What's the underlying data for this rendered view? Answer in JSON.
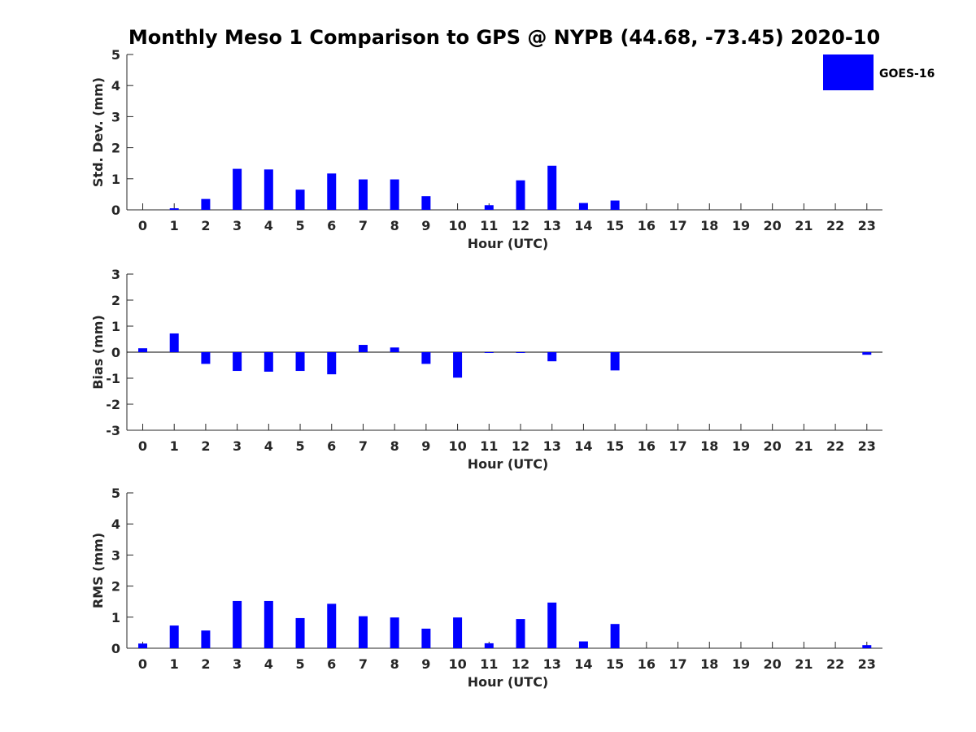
{
  "title": "Monthly Meso 1 Comparison to GPS @ NYPB (44.68, -73.45) 2020-10",
  "legend": {
    "label": "GOES-16",
    "color": "#0000ff"
  },
  "colors": {
    "bar": "#0000ff",
    "axis": "#262626",
    "background": "#ffffff"
  },
  "chart_data": [
    {
      "type": "bar",
      "ylabel": "Std. Dev. (mm)",
      "xlabel": "Hour (UTC)",
      "ylim": [
        0,
        5
      ],
      "yticks": [
        0,
        1,
        2,
        3,
        4,
        5
      ],
      "categories": [
        "0",
        "1",
        "2",
        "3",
        "4",
        "5",
        "6",
        "7",
        "8",
        "9",
        "10",
        "11",
        "12",
        "13",
        "14",
        "15",
        "16",
        "17",
        "18",
        "19",
        "20",
        "21",
        "22",
        "23"
      ],
      "series": [
        {
          "name": "GOES-16",
          "values": [
            0,
            0.05,
            0.35,
            1.32,
            1.3,
            0.65,
            1.17,
            0.98,
            0.98,
            0.44,
            0,
            0.15,
            0.95,
            1.42,
            0.22,
            0.3,
            0,
            0,
            0,
            0,
            0,
            0,
            0,
            0
          ]
        }
      ]
    },
    {
      "type": "bar",
      "ylabel": "Bias (mm)",
      "xlabel": "Hour (UTC)",
      "ylim": [
        -3,
        3
      ],
      "yticks": [
        -3,
        -2,
        -1,
        0,
        1,
        2,
        3
      ],
      "zero_line": true,
      "categories": [
        "0",
        "1",
        "2",
        "3",
        "4",
        "5",
        "6",
        "7",
        "8",
        "9",
        "10",
        "11",
        "12",
        "13",
        "14",
        "15",
        "16",
        "17",
        "18",
        "19",
        "20",
        "21",
        "22",
        "23"
      ],
      "series": [
        {
          "name": "GOES-16",
          "values": [
            0.15,
            0.72,
            -0.45,
            -0.72,
            -0.75,
            -0.72,
            -0.85,
            0.28,
            0.18,
            -0.45,
            -0.98,
            -0.02,
            -0.02,
            -0.35,
            0,
            -0.7,
            0,
            0,
            0,
            0,
            0,
            0,
            0,
            -0.1
          ]
        }
      ]
    },
    {
      "type": "bar",
      "ylabel": "RMS (mm)",
      "xlabel": "Hour (UTC)",
      "ylim": [
        0,
        5
      ],
      "yticks": [
        0,
        1,
        2,
        3,
        4,
        5
      ],
      "categories": [
        "0",
        "1",
        "2",
        "3",
        "4",
        "5",
        "6",
        "7",
        "8",
        "9",
        "10",
        "11",
        "12",
        "13",
        "14",
        "15",
        "16",
        "17",
        "18",
        "19",
        "20",
        "21",
        "22",
        "23"
      ],
      "series": [
        {
          "name": "GOES-16",
          "values": [
            0.15,
            0.73,
            0.57,
            1.52,
            1.52,
            0.97,
            1.43,
            1.03,
            0.99,
            0.63,
            0.99,
            0.16,
            0.94,
            1.47,
            0.22,
            0.78,
            0,
            0,
            0,
            0,
            0,
            0,
            0,
            0.1
          ]
        }
      ]
    }
  ]
}
